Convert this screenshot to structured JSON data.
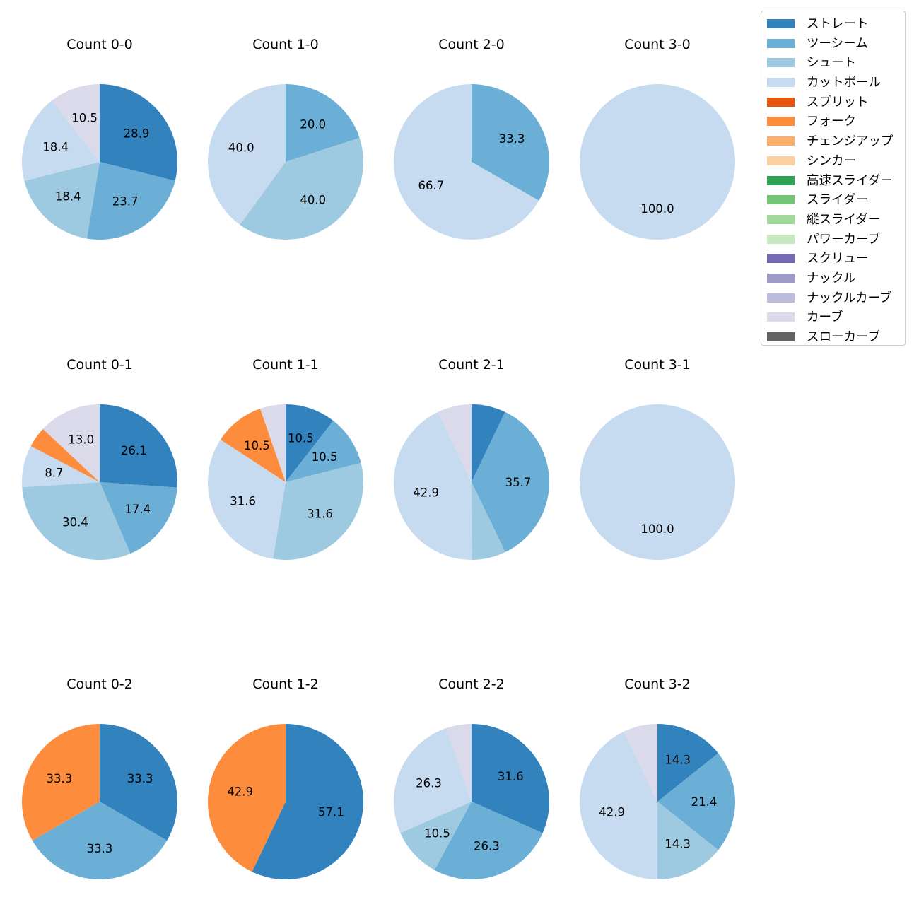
{
  "legend": [
    {
      "name": "ストレート",
      "color": "#3182bd"
    },
    {
      "name": "ツーシーム",
      "color": "#6baed6"
    },
    {
      "name": "シュート",
      "color": "#9ecae1"
    },
    {
      "name": "カットボール",
      "color": "#c6dbef"
    },
    {
      "name": "スプリット",
      "color": "#e6550d"
    },
    {
      "name": "フォーク",
      "color": "#fd8d3c"
    },
    {
      "name": "チェンジアップ",
      "color": "#fdae6b"
    },
    {
      "name": "シンカー",
      "color": "#fdd0a2"
    },
    {
      "name": "高速スライダー",
      "color": "#31a354"
    },
    {
      "name": "スライダー",
      "color": "#74c476"
    },
    {
      "name": "縦スライダー",
      "color": "#a1d99b"
    },
    {
      "name": "パワーカーブ",
      "color": "#c7e9c0"
    },
    {
      "name": "スクリュー",
      "color": "#756bb1"
    },
    {
      "name": "ナックル",
      "color": "#9e9ac8"
    },
    {
      "name": "ナックルカーブ",
      "color": "#bcbddc"
    },
    {
      "name": "カーブ",
      "color": "#dadaeb"
    },
    {
      "name": "スローカーブ",
      "color": "#636363"
    }
  ],
  "chart_data": [
    {
      "type": "pie",
      "title": "Count 0-0",
      "slices": [
        {
          "pitch": "ストレート",
          "value": 28.9,
          "label": "28.9"
        },
        {
          "pitch": "ツーシーム",
          "value": 23.7,
          "label": "23.7"
        },
        {
          "pitch": "シュート",
          "value": 18.4,
          "label": "18.4"
        },
        {
          "pitch": "カットボール",
          "value": 18.4,
          "label": "18.4"
        },
        {
          "pitch": "カーブ",
          "value": 10.5,
          "label": "10.5"
        }
      ]
    },
    {
      "type": "pie",
      "title": "Count 1-0",
      "slices": [
        {
          "pitch": "ツーシーム",
          "value": 20.0,
          "label": "20.0"
        },
        {
          "pitch": "シュート",
          "value": 40.0,
          "label": "40.0"
        },
        {
          "pitch": "カットボール",
          "value": 40.0,
          "label": "40.0"
        }
      ]
    },
    {
      "type": "pie",
      "title": "Count 2-0",
      "slices": [
        {
          "pitch": "ツーシーム",
          "value": 33.3,
          "label": "33.3"
        },
        {
          "pitch": "カットボール",
          "value": 66.7,
          "label": "66.7"
        }
      ]
    },
    {
      "type": "pie",
      "title": "Count 3-0",
      "slices": [
        {
          "pitch": "カットボール",
          "value": 100.0,
          "label": "100.0"
        }
      ]
    },
    {
      "type": "pie",
      "title": "Count 0-1",
      "slices": [
        {
          "pitch": "ストレート",
          "value": 26.1,
          "label": "26.1"
        },
        {
          "pitch": "ツーシーム",
          "value": 17.4,
          "label": "17.4"
        },
        {
          "pitch": "シュート",
          "value": 30.4,
          "label": "30.4"
        },
        {
          "pitch": "カットボール",
          "value": 8.7,
          "label": "8.7"
        },
        {
          "pitch": "フォーク",
          "value": 4.3,
          "label": ""
        },
        {
          "pitch": "カーブ",
          "value": 13.0,
          "label": "13.0"
        }
      ]
    },
    {
      "type": "pie",
      "title": "Count 1-1",
      "slices": [
        {
          "pitch": "ストレート",
          "value": 10.5,
          "label": "10.5"
        },
        {
          "pitch": "ツーシーム",
          "value": 10.5,
          "label": "10.5"
        },
        {
          "pitch": "シュート",
          "value": 31.6,
          "label": "31.6"
        },
        {
          "pitch": "カットボール",
          "value": 31.6,
          "label": "31.6"
        },
        {
          "pitch": "フォーク",
          "value": 10.5,
          "label": "10.5"
        },
        {
          "pitch": "カーブ",
          "value": 5.3,
          "label": ""
        }
      ]
    },
    {
      "type": "pie",
      "title": "Count 2-1",
      "slices": [
        {
          "pitch": "ストレート",
          "value": 7.1,
          "label": ""
        },
        {
          "pitch": "ツーシーム",
          "value": 35.7,
          "label": "35.7"
        },
        {
          "pitch": "シュート",
          "value": 7.1,
          "label": ""
        },
        {
          "pitch": "カットボール",
          "value": 42.9,
          "label": "42.9"
        },
        {
          "pitch": "カーブ",
          "value": 7.1,
          "label": ""
        }
      ]
    },
    {
      "type": "pie",
      "title": "Count 3-1",
      "slices": [
        {
          "pitch": "カットボール",
          "value": 100.0,
          "label": "100.0"
        }
      ]
    },
    {
      "type": "pie",
      "title": "Count 0-2",
      "slices": [
        {
          "pitch": "ストレート",
          "value": 33.3,
          "label": "33.3"
        },
        {
          "pitch": "ツーシーム",
          "value": 33.3,
          "label": "33.3"
        },
        {
          "pitch": "フォーク",
          "value": 33.3,
          "label": "33.3"
        }
      ]
    },
    {
      "type": "pie",
      "title": "Count 1-2",
      "slices": [
        {
          "pitch": "ストレート",
          "value": 57.1,
          "label": "57.1"
        },
        {
          "pitch": "フォーク",
          "value": 42.9,
          "label": "42.9"
        }
      ]
    },
    {
      "type": "pie",
      "title": "Count 2-2",
      "slices": [
        {
          "pitch": "ストレート",
          "value": 31.6,
          "label": "31.6"
        },
        {
          "pitch": "ツーシーム",
          "value": 26.3,
          "label": "26.3"
        },
        {
          "pitch": "シュート",
          "value": 10.5,
          "label": "10.5"
        },
        {
          "pitch": "カットボール",
          "value": 26.3,
          "label": "26.3"
        },
        {
          "pitch": "カーブ",
          "value": 5.3,
          "label": ""
        }
      ]
    },
    {
      "type": "pie",
      "title": "Count 3-2",
      "slices": [
        {
          "pitch": "ストレート",
          "value": 14.3,
          "label": "14.3"
        },
        {
          "pitch": "ツーシーム",
          "value": 21.4,
          "label": "21.4"
        },
        {
          "pitch": "シュート",
          "value": 14.3,
          "label": "14.3"
        },
        {
          "pitch": "カットボール",
          "value": 42.9,
          "label": "42.9"
        },
        {
          "pitch": "カーブ",
          "value": 7.1,
          "label": ""
        }
      ]
    }
  ]
}
